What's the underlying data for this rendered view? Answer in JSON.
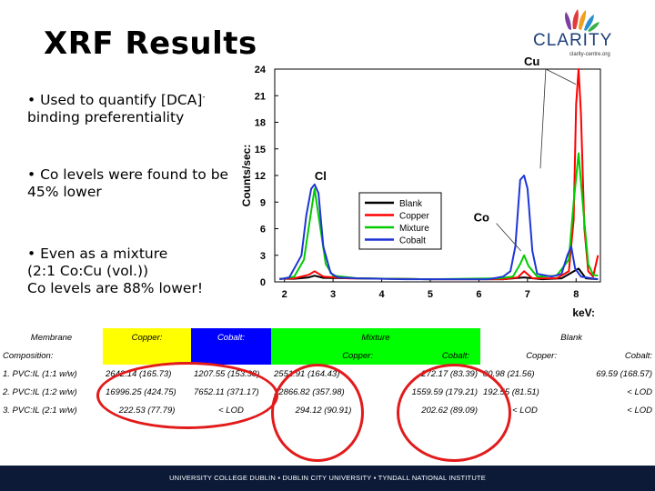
{
  "title": "XRF Results",
  "logo": {
    "name": "CLARITY",
    "tagline": "clarity-centre.org"
  },
  "bullets": [
    {
      "text": "• Used to quantify [DCA]",
      "sup": "-",
      "text2": " binding preferentiality"
    },
    {
      "text": "• Co levels were found to be 45% lower"
    },
    {
      "text": "• Even as a mixture",
      "line2": "(2:1 Co:Cu (vol.))",
      "line3": "Co levels are 88% lower!"
    }
  ],
  "chart_data": {
    "type": "line",
    "xlabel": "keV:",
    "ylabel": "Counts/sec:",
    "xlim": [
      1.8,
      8.5
    ],
    "ylim": [
      0,
      24
    ],
    "xticks": [
      2,
      3,
      4,
      5,
      6,
      7,
      8
    ],
    "yticks": [
      0,
      3,
      6,
      9,
      12,
      15,
      18,
      21,
      24
    ],
    "grid": false,
    "legend_position": "center-right",
    "annotations": [
      {
        "text": "Cu",
        "x": 8.05,
        "y": 22.5
      },
      {
        "text": "Cl",
        "x": 2.62,
        "y": 11.5
      },
      {
        "text": "Co",
        "x": 6.92,
        "y": 6.6
      }
    ],
    "series": [
      {
        "name": "Blank",
        "color": "#000000",
        "points": [
          [
            1.9,
            0.35
          ],
          [
            2.2,
            0.35
          ],
          [
            2.5,
            0.5
          ],
          [
            2.62,
            0.7
          ],
          [
            2.8,
            0.45
          ],
          [
            3.5,
            0.4
          ],
          [
            5.0,
            0.3
          ],
          [
            6.5,
            0.3
          ],
          [
            6.93,
            0.5
          ],
          [
            7.3,
            0.3
          ],
          [
            7.7,
            0.4
          ],
          [
            8.05,
            1.5
          ],
          [
            8.2,
            0.4
          ],
          [
            8.45,
            0.3
          ]
        ]
      },
      {
        "name": "Copper",
        "color": "#ff0000",
        "points": [
          [
            1.9,
            0.35
          ],
          [
            2.2,
            0.4
          ],
          [
            2.5,
            0.8
          ],
          [
            2.62,
            1.2
          ],
          [
            2.8,
            0.6
          ],
          [
            3.3,
            0.4
          ],
          [
            5.0,
            0.3
          ],
          [
            6.5,
            0.3
          ],
          [
            6.8,
            0.5
          ],
          [
            6.93,
            1.2
          ],
          [
            7.1,
            0.4
          ],
          [
            7.6,
            0.4
          ],
          [
            7.85,
            1.2
          ],
          [
            7.95,
            7.0
          ],
          [
            8.0,
            20.0
          ],
          [
            8.05,
            24.0
          ],
          [
            8.1,
            19.0
          ],
          [
            8.17,
            6.0
          ],
          [
            8.25,
            1.2
          ],
          [
            8.35,
            0.6
          ],
          [
            8.45,
            3.0
          ]
        ]
      },
      {
        "name": "Mixture",
        "color": "#00cc00",
        "points": [
          [
            1.9,
            0.3
          ],
          [
            2.2,
            0.6
          ],
          [
            2.4,
            2.5
          ],
          [
            2.55,
            8.0
          ],
          [
            2.62,
            10.5
          ],
          [
            2.7,
            7.5
          ],
          [
            2.85,
            2.0
          ],
          [
            3.0,
            0.7
          ],
          [
            3.5,
            0.4
          ],
          [
            5.0,
            0.3
          ],
          [
            6.4,
            0.4
          ],
          [
            6.7,
            0.6
          ],
          [
            6.85,
            2.0
          ],
          [
            6.93,
            3.0
          ],
          [
            7.02,
            1.8
          ],
          [
            7.2,
            0.6
          ],
          [
            7.6,
            0.7
          ],
          [
            7.85,
            2.5
          ],
          [
            7.95,
            9.0
          ],
          [
            8.05,
            14.5
          ],
          [
            8.15,
            8.0
          ],
          [
            8.25,
            2.0
          ],
          [
            8.35,
            0.8
          ],
          [
            8.45,
            0.7
          ]
        ]
      },
      {
        "name": "Cobalt",
        "color": "#1f35d6",
        "points": [
          [
            1.9,
            0.3
          ],
          [
            2.1,
            0.5
          ],
          [
            2.35,
            3.0
          ],
          [
            2.45,
            7.5
          ],
          [
            2.55,
            10.5
          ],
          [
            2.62,
            11.0
          ],
          [
            2.7,
            10.0
          ],
          [
            2.8,
            4.0
          ],
          [
            2.95,
            1.0
          ],
          [
            3.1,
            0.5
          ],
          [
            3.5,
            0.4
          ],
          [
            4.5,
            0.3
          ],
          [
            5.5,
            0.3
          ],
          [
            6.2,
            0.3
          ],
          [
            6.5,
            0.6
          ],
          [
            6.65,
            1.2
          ],
          [
            6.75,
            4.0
          ],
          [
            6.85,
            11.5
          ],
          [
            6.93,
            12.0
          ],
          [
            7.0,
            10.5
          ],
          [
            7.1,
            3.5
          ],
          [
            7.2,
            0.9
          ],
          [
            7.5,
            0.6
          ],
          [
            7.7,
            0.9
          ],
          [
            7.82,
            3.0
          ],
          [
            7.9,
            4.0
          ],
          [
            7.98,
            1.5
          ],
          [
            8.1,
            0.6
          ],
          [
            8.45,
            0.3
          ]
        ]
      }
    ]
  },
  "table": {
    "header1": {
      "membrane": "Membrane",
      "copper": "Copper:",
      "cobalt": "Cobalt:",
      "mixture": "Mixture",
      "blank": "Blank"
    },
    "header2": {
      "composition": "Composition:",
      "mix_copper": "Copper:",
      "mix_cobalt": "Cobalt:",
      "blank_copper": "Copper:",
      "blank_cobalt": "Cobalt:"
    },
    "rows": [
      {
        "label": "1. PVC:IL (1:1 w/w)",
        "copper": "2642.14",
        "copper_err": "(165.73)",
        "cobalt": "1207.55 (153.38)",
        "mix_cu": "2551.91",
        "mix_cu_err": "(164.43)",
        "mix_co": "272.17",
        "mix_co_err": "(83.39)",
        "blank_cu": "80.98",
        "blank_cu_err": "(21.56)",
        "blank_co": "69.59",
        "blank_co_err": "(168.57)"
      },
      {
        "label": "2. PVC:IL (1:2 w/w)",
        "copper": "16996.25",
        "copper_err": "(424.75)",
        "cobalt": "7652.11 (371.17)",
        "mix_cu": "12866.82",
        "mix_cu_err": "(357.98)",
        "mix_co": "1559.59",
        "mix_co_err": "(179.21)",
        "blank_cu": "192.55",
        "blank_cu_err": "(81.51)",
        "blank_co": "< LOD",
        "blank_co_err": ""
      },
      {
        "label": "3. PVC:IL (2:1 w/w)",
        "copper": "222.53",
        "copper_err": "(77.79)",
        "cobalt": "< LOD",
        "mix_cu": "294.12",
        "mix_cu_err": "(90.91)",
        "mix_co": "202.62",
        "mix_co_err": "(89.09)",
        "blank_cu": "< LOD",
        "blank_cu_err": "",
        "blank_co": "< LOD",
        "blank_co_err": ""
      }
    ]
  },
  "footer": "UNIVERSITY COLLEGE DUBLIN  ▪  DUBLIN CITY UNIVERSITY  ▪  TYNDALL NATIONAL INSTITUTE"
}
